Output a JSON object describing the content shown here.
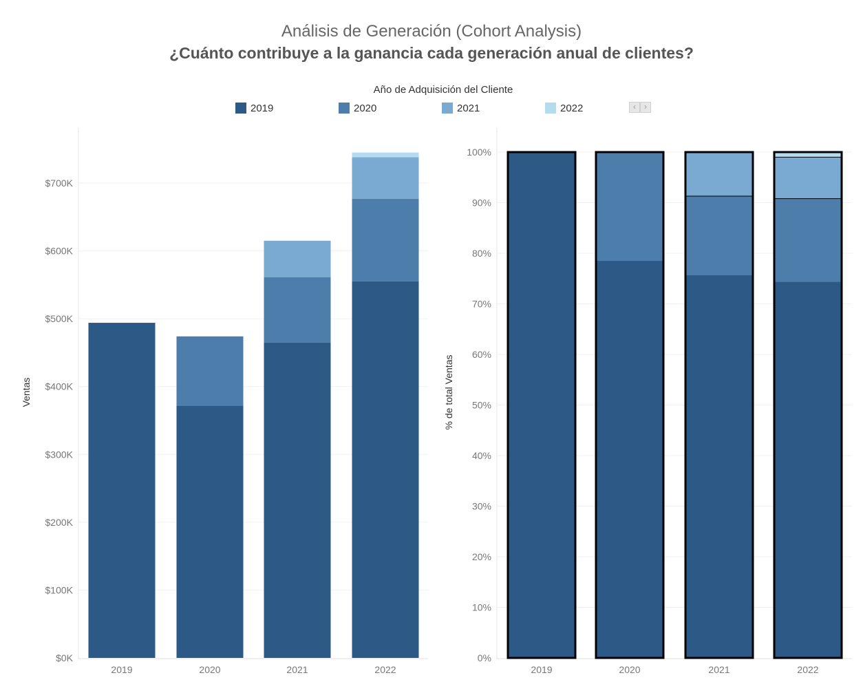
{
  "header": {
    "title": "Análisis de Generación (Cohort Analysis)",
    "subtitle": "¿Cuánto contribuye a la ganancia cada generación anual de clientes?"
  },
  "legend": {
    "title": "Año de Adquisición del Cliente",
    "items": [
      {
        "label": "2019",
        "color": "#2c5985"
      },
      {
        "label": "2020",
        "color": "#4c7dab"
      },
      {
        "label": "2021",
        "color": "#7aaad2"
      },
      {
        "label": "2022",
        "color": "#b5dbf0"
      }
    ],
    "nav_prev": "‹",
    "nav_next": "›"
  },
  "chart_data": [
    {
      "type": "bar",
      "stacked": true,
      "categories": [
        "2019",
        "2020",
        "2021",
        "2022"
      ],
      "series": [
        {
          "name": "2019",
          "color": "#2c5985",
          "values": [
            494000,
            372000,
            465000,
            555000
          ]
        },
        {
          "name": "2020",
          "color": "#4c7dab",
          "values": [
            0,
            102000,
            96000,
            122000
          ]
        },
        {
          "name": "2021",
          "color": "#7aaad2",
          "values": [
            0,
            0,
            54000,
            61000
          ]
        },
        {
          "name": "2022",
          "color": "#b5dbf0",
          "values": [
            0,
            0,
            0,
            7000
          ]
        }
      ],
      "ylabel": "Ventas",
      "ylim": [
        0,
        740000
      ],
      "yticks": [
        {
          "value": 0,
          "label": "$0K"
        },
        {
          "value": 100000,
          "label": "$100K"
        },
        {
          "value": 200000,
          "label": "$200K"
        },
        {
          "value": 300000,
          "label": "$300K"
        },
        {
          "value": 400000,
          "label": "$400K"
        },
        {
          "value": 500000,
          "label": "$500K"
        },
        {
          "value": 600000,
          "label": "$600K"
        },
        {
          "value": 700000,
          "label": "$700K"
        }
      ],
      "grid": true
    },
    {
      "type": "bar",
      "stacked": true,
      "normalized": true,
      "categories": [
        "2019",
        "2020",
        "2021",
        "2022"
      ],
      "series": [
        {
          "name": "2019",
          "color": "#2c5985",
          "values": [
            100,
            78.5,
            75.7,
            74.4
          ]
        },
        {
          "name": "2020",
          "color": "#4c7dab",
          "values": [
            0,
            21.5,
            15.6,
            16.4
          ]
        },
        {
          "name": "2021",
          "color": "#7aaad2",
          "values": [
            0,
            0,
            8.7,
            8.2
          ]
        },
        {
          "name": "2022",
          "color": "#b5dbf0",
          "values": [
            0,
            0,
            0,
            1.0
          ]
        }
      ],
      "ylabel": "% de total Ventas",
      "ylim": [
        0,
        100
      ],
      "yticks": [
        {
          "value": 0,
          "label": "0%"
        },
        {
          "value": 10,
          "label": "10%"
        },
        {
          "value": 20,
          "label": "20%"
        },
        {
          "value": 30,
          "label": "30%"
        },
        {
          "value": 40,
          "label": "40%"
        },
        {
          "value": 50,
          "label": "50%"
        },
        {
          "value": 60,
          "label": "60%"
        },
        {
          "value": 70,
          "label": "70%"
        },
        {
          "value": 80,
          "label": "80%"
        },
        {
          "value": 90,
          "label": "90%"
        },
        {
          "value": 100,
          "label": "100%"
        }
      ],
      "grid": true
    }
  ]
}
